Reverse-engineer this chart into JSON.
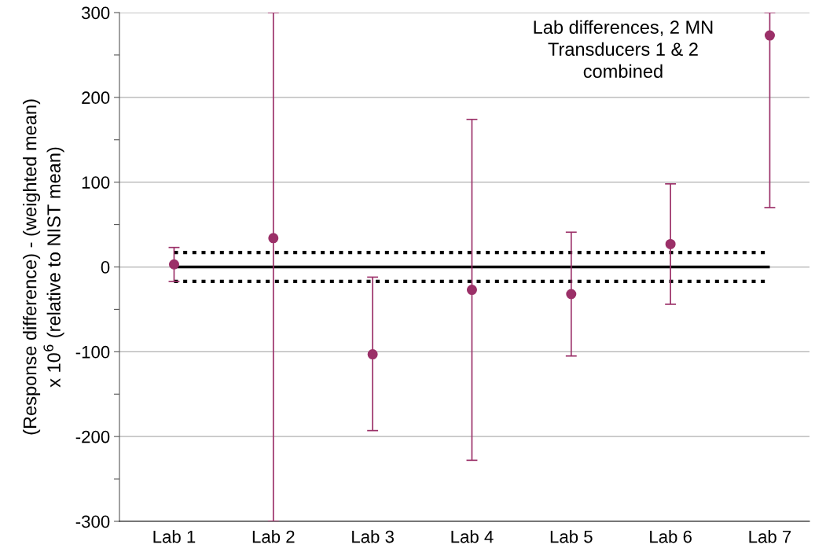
{
  "chart_data": {
    "type": "scatter",
    "title": "Lab differences, 2 MN\nTransducers 1 & 2\ncombined",
    "ylabel": "(Response difference) - (weighted mean)\nx 10$^{6}$ (relative to NIST mean)",
    "categories": [
      "Lab 1",
      "Lab 2",
      "Lab 3",
      "Lab 4",
      "Lab 5",
      "Lab 6",
      "Lab 7"
    ],
    "series": [
      {
        "color": "#9b3068",
        "values": [
          3,
          34,
          -103,
          -27,
          -32,
          27,
          273
        ],
        "errors": [
          [
            -17,
            23
          ],
          [
            -300,
            300
          ],
          [
            -193,
            -12
          ],
          [
            -228,
            174
          ],
          [
            -105,
            41
          ],
          [
            -44,
            98
          ],
          [
            70,
            300
          ]
        ]
      }
    ],
    "ylim": [
      -300,
      300
    ],
    "yticks": [
      -300,
      {
        "value": -250,
        "label": null
      },
      -200,
      {
        "value": -150,
        "label": null
      },
      -100,
      {
        "value": -50,
        "label": null
      },
      0,
      {
        "value": 50,
        "label": null
      },
      100,
      {
        "value": 150,
        "label": null
      },
      200,
      {
        "value": 250,
        "label": null
      },
      300
    ],
    "ref_lines": [
      {
        "axis": "y",
        "value": 0,
        "color": "#000000",
        "line_style": "solid"
      },
      {
        "axis": "y",
        "value": 17,
        "color": "#000000",
        "line_style": "dotted"
      },
      {
        "axis": "y",
        "value": -17,
        "color": "#000000",
        "line_style": "dotted"
      }
    ],
    "grid": "y",
    "marker": "circle",
    "legend": false
  }
}
